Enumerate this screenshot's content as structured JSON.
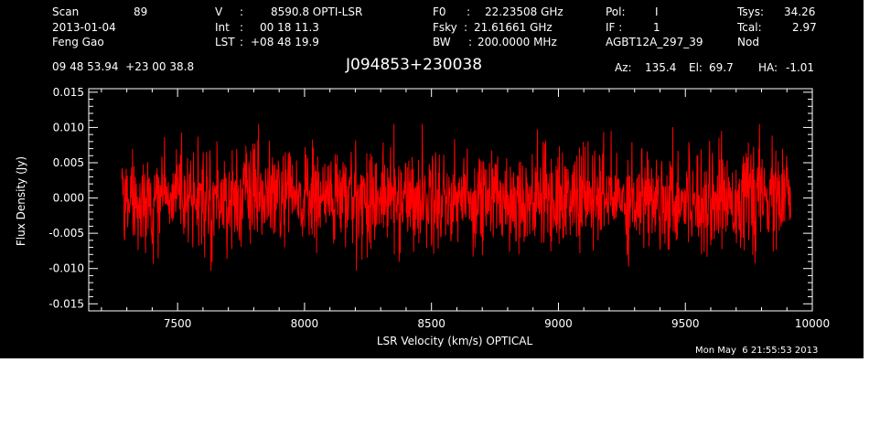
{
  "header": {
    "scan_label": "Scan",
    "scan_value": "89",
    "date": "2013-01-04",
    "observer": "Feng Gao",
    "velocity_label": "V",
    "velocity_value": "8590.8 OPTI-LSR",
    "int_label": "Int",
    "int_value": "00 18 11.3",
    "lst_label": "LST",
    "lst_value": "+08 48 19.9",
    "f0_label": "F0",
    "f0_value": "22.23508 GHz",
    "fsky_label": "Fsky",
    "fsky_value": "21.61661 GHz",
    "bw_label": "BW",
    "bw_value": "200.0000 MHz",
    "pol_label": "Pol:",
    "pol_value": "I",
    "if_label": "IF :",
    "if_value": "1",
    "project": "AGBT12A_297_39",
    "tsys_label": "Tsys:",
    "tsys_value": "34.26",
    "tcal_label": "Tcal:",
    "tcal_value": "2.97",
    "mode": "Nod",
    "coords": "09 48 53.94  +23 00 38.8",
    "source_name": "J094853+230038",
    "az_label": "Az:",
    "az_value": "135.4",
    "el_label": "El:",
    "el_value": "69.7",
    "ha_label": "HA:",
    "ha_value": "-1.01"
  },
  "footer": {
    "timestamp": "Mon May  6 21:55:53 2013"
  },
  "colors": {
    "background": "#000000",
    "axes": "#ffffff",
    "spectrum": "#ff0000"
  },
  "chart_data": {
    "type": "line",
    "title": "J094853+230038",
    "xlabel": "LSR Velocity (km/s) OPTICAL",
    "ylabel": "Flux Density (Jy)",
    "xlim": [
      7150,
      10000
    ],
    "ylim": [
      -0.016,
      0.0155
    ],
    "x_ticks": [
      7500,
      8000,
      8500,
      9000,
      9500,
      10000
    ],
    "x_tick_labels": [
      "7500",
      "8000",
      "8500",
      "9000",
      "9500",
      "10000"
    ],
    "y_ticks": [
      -0.015,
      -0.01,
      -0.005,
      0.0,
      0.005,
      0.01,
      0.015
    ],
    "y_tick_labels": [
      "-0.015",
      "-0.010",
      "-0.005",
      "0.000",
      "0.005",
      "0.010",
      "0.015"
    ],
    "grid": false,
    "legend": "none",
    "series": [
      {
        "x_range": [
          7280,
          9915
        ],
        "mean": 0.0,
        "noise_rms": 0.0035,
        "peak_max": 0.0105,
        "peak_min": -0.0103
      }
    ]
  }
}
